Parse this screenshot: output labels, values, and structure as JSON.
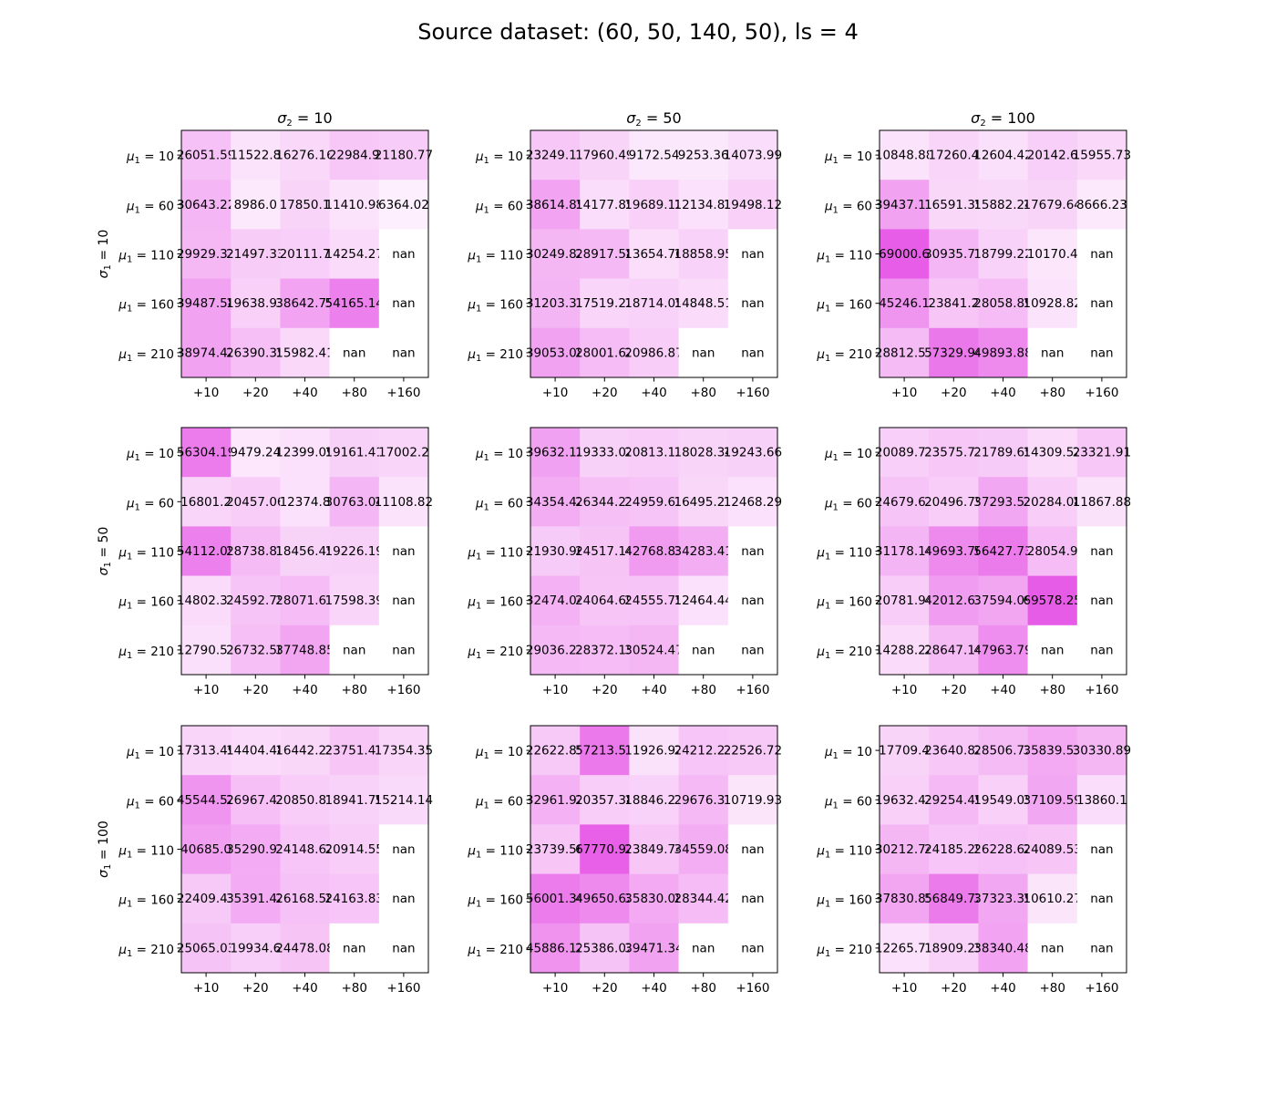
{
  "chart_data": {
    "type": "heatmap",
    "title": "Source dataset: (60, 50, 140, 50), ls = 4",
    "column_ticks": [
      "+10",
      "+20",
      "+40",
      "+80",
      "+160"
    ],
    "row_ticks": [
      "10",
      "60",
      "110",
      "160",
      "210"
    ],
    "row_group_labels": [
      "10",
      "50",
      "100"
    ],
    "column_group_labels": [
      "10",
      "50",
      "100"
    ],
    "colors": {
      "background": "#ffffff",
      "cell_max": "#e75ce7",
      "text": "#000000"
    },
    "grid": false,
    "panels": [
      {
        "row_group": "10",
        "column_group": "10",
        "cells": [
          [
            "26051.59",
            "11522.8",
            "16276.16",
            "22984.9",
            "21180.77"
          ],
          [
            "30643.22",
            "8986.0",
            "17850.1",
            "11410.98",
            "6364.02"
          ],
          [
            "29929.33",
            "21497.33",
            "20111.7",
            "14254.27",
            "nan"
          ],
          [
            "39487.58",
            "19638.93",
            "38642.75",
            "54165.14",
            "nan"
          ],
          [
            "38974.42",
            "26390.35",
            "15982.41",
            "nan",
            "nan"
          ]
        ]
      },
      {
        "row_group": "10",
        "column_group": "50",
        "cells": [
          [
            "23249.17",
            "17960.49",
            "9172.54",
            "9253.36",
            "14073.99"
          ],
          [
            "38614.85",
            "14177.85",
            "19689.12",
            "12134.83",
            "19498.12"
          ],
          [
            "30249.82",
            "28917.58",
            "13654.76",
            "18858.95",
            "nan"
          ],
          [
            "31203.33",
            "17519.22",
            "18714.05",
            "14848.51",
            "nan"
          ],
          [
            "39053.08",
            "28001.62",
            "20986.87",
            "nan",
            "nan"
          ]
        ]
      },
      {
        "row_group": "10",
        "column_group": "100",
        "cells": [
          [
            "10848.88",
            "17260.4",
            "12604.42",
            "20142.6",
            "15955.73"
          ],
          [
            "39437.17",
            "16591.35",
            "15882.24",
            "17679.64",
            "8666.23"
          ],
          [
            "69000.6",
            "30935.71",
            "18799.22",
            "10170.4",
            "nan"
          ],
          [
            "45246.1",
            "23841.2",
            "28058.89",
            "10928.82",
            "nan"
          ],
          [
            "28812.57",
            "57329.94",
            "49893.88",
            "nan",
            "nan"
          ]
        ]
      },
      {
        "row_group": "50",
        "column_group": "10",
        "cells": [
          [
            "56304.19",
            "9479.24",
            "12399.09",
            "19161.41",
            "17002.2"
          ],
          [
            "16801.2",
            "20457.06",
            "12374.8",
            "30763.04",
            "11108.82"
          ],
          [
            "54112.05",
            "28738.81",
            "18456.45",
            "19226.19",
            "nan"
          ],
          [
            "14802.37",
            "24592.75",
            "28071.67",
            "17598.39",
            "nan"
          ],
          [
            "12790.57",
            "26732.58",
            "37748.85",
            "nan",
            "nan"
          ]
        ]
      },
      {
        "row_group": "50",
        "column_group": "50",
        "cells": [
          [
            "39632.12",
            "19333.02",
            "20813.13",
            "18028.34",
            "19243.66"
          ],
          [
            "34354.42",
            "26344.21",
            "24959.63",
            "16495.27",
            "12468.29"
          ],
          [
            "21930.96",
            "24517.14",
            "42768.83",
            "34283.41",
            "nan"
          ],
          [
            "32474.04",
            "24064.69",
            "24555.75",
            "12464.44",
            "nan"
          ],
          [
            "29036.23",
            "28372.15",
            "30524.47",
            "nan",
            "nan"
          ]
        ]
      },
      {
        "row_group": "50",
        "column_group": "100",
        "cells": [
          [
            "20089.77",
            "23575.77",
            "21789.65",
            "14309.52",
            "23321.91"
          ],
          [
            "24679.67",
            "20496.79",
            "37293.53",
            "20284.08",
            "11867.88"
          ],
          [
            "31178.14",
            "49693.76",
            "56427.73",
            "28054.9",
            "nan"
          ],
          [
            "20781.94",
            "42012.67",
            "37594.09",
            "69578.25",
            "nan"
          ],
          [
            "14288.22",
            "28647.14",
            "47963.79",
            "nan",
            "nan"
          ]
        ]
      },
      {
        "row_group": "100",
        "column_group": "10",
        "cells": [
          [
            "17313.49",
            "14404.48",
            "16442.23",
            "23751.41",
            "17354.35"
          ],
          [
            "45544.52",
            "26967.43",
            "20850.81",
            "18941.79",
            "15214.14"
          ],
          [
            "40685.0",
            "35290.91",
            "24148.62",
            "20914.55",
            "nan"
          ],
          [
            "22409.43",
            "35391.42",
            "26168.58",
            "24163.83",
            "nan"
          ],
          [
            "25065.03",
            "19934.6",
            "24478.08",
            "nan",
            "nan"
          ]
        ]
      },
      {
        "row_group": "100",
        "column_group": "50",
        "cells": [
          [
            "22622.85",
            "57213.57",
            "11926.92",
            "24212.23",
            "22526.72"
          ],
          [
            "32961.92",
            "20357.38",
            "18846.27",
            "29676.37",
            "10719.93"
          ],
          [
            "23739.56",
            "67770.92",
            "23849.74",
            "34559.08",
            "nan"
          ],
          [
            "56001.34",
            "49650.62",
            "35830.08",
            "28344.42",
            "nan"
          ],
          [
            "45886.12",
            "25386.02",
            "39471.34",
            "nan",
            "nan"
          ]
        ]
      },
      {
        "row_group": "100",
        "column_group": "100",
        "cells": [
          [
            "17709.4",
            "23640.82",
            "28506.72",
            "35839.53",
            "30330.89"
          ],
          [
            "19632.43",
            "29254.49",
            "19549.05",
            "37109.59",
            "13860.1"
          ],
          [
            "30212.74",
            "24185.29",
            "26228.62",
            "24089.53",
            "nan"
          ],
          [
            "37830.85",
            "56849.72",
            "37323.39",
            "10610.27",
            "nan"
          ],
          [
            "12265.71",
            "18909.25",
            "38340.48",
            "nan",
            "nan"
          ]
        ]
      }
    ]
  }
}
